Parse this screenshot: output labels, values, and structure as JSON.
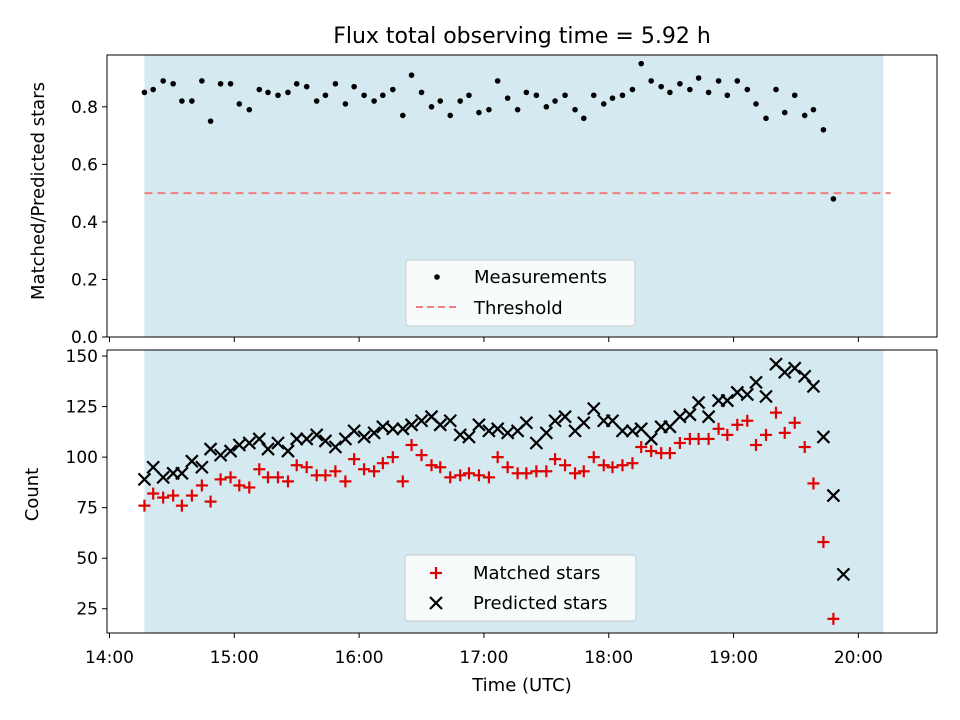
{
  "chart_data": {
    "title": "Flux total observing time = 5.92 h",
    "x_label": "Time (UTC)",
    "x_ticks": [
      "14:00",
      "15:00",
      "16:00",
      "17:00",
      "18:00",
      "19:00",
      "20:00"
    ],
    "x_tick_hours": [
      14,
      15,
      16,
      17,
      18,
      19,
      20
    ],
    "x_range_hours": [
      13.98,
      20.63
    ],
    "observing_window_hours": [
      14.28,
      20.2
    ],
    "window_color": "#d4eaf0",
    "panels": [
      {
        "type": "scatter",
        "y_label": "Matched/Predicted stars",
        "y_range": [
          0,
          0.98
        ],
        "y_ticks": [
          0.0,
          0.2,
          0.4,
          0.6,
          0.8
        ],
        "y_tick_labels": [
          "0.0",
          "0.2",
          "0.4",
          "0.6",
          "0.8"
        ],
        "legend": "bottom-center",
        "series": [
          {
            "name": "Measurements",
            "marker": "dot",
            "color": "#000000",
            "points": [
              [
                14.28,
                0.85
              ],
              [
                14.35,
                0.86
              ],
              [
                14.43,
                0.89
              ],
              [
                14.51,
                0.88
              ],
              [
                14.58,
                0.82
              ],
              [
                14.66,
                0.82
              ],
              [
                14.74,
                0.89
              ],
              [
                14.81,
                0.75
              ],
              [
                14.89,
                0.88
              ],
              [
                14.97,
                0.88
              ],
              [
                15.04,
                0.81
              ],
              [
                15.12,
                0.79
              ],
              [
                15.2,
                0.86
              ],
              [
                15.27,
                0.85
              ],
              [
                15.35,
                0.84
              ],
              [
                15.43,
                0.85
              ],
              [
                15.5,
                0.88
              ],
              [
                15.58,
                0.87
              ],
              [
                15.66,
                0.82
              ],
              [
                15.73,
                0.84
              ],
              [
                15.81,
                0.88
              ],
              [
                15.89,
                0.81
              ],
              [
                15.96,
                0.87
              ],
              [
                16.04,
                0.84
              ],
              [
                16.12,
                0.82
              ],
              [
                16.19,
                0.84
              ],
              [
                16.27,
                0.86
              ],
              [
                16.35,
                0.77
              ],
              [
                16.42,
                0.91
              ],
              [
                16.5,
                0.85
              ],
              [
                16.58,
                0.8
              ],
              [
                16.65,
                0.82
              ],
              [
                16.73,
                0.77
              ],
              [
                16.81,
                0.82
              ],
              [
                16.88,
                0.84
              ],
              [
                16.96,
                0.78
              ],
              [
                17.04,
                0.79
              ],
              [
                17.11,
                0.89
              ],
              [
                17.19,
                0.83
              ],
              [
                17.27,
                0.79
              ],
              [
                17.34,
                0.85
              ],
              [
                17.42,
                0.84
              ],
              [
                17.5,
                0.8
              ],
              [
                17.57,
                0.82
              ],
              [
                17.65,
                0.84
              ],
              [
                17.73,
                0.79
              ],
              [
                17.8,
                0.76
              ],
              [
                17.88,
                0.84
              ],
              [
                17.96,
                0.81
              ],
              [
                18.03,
                0.83
              ],
              [
                18.11,
                0.84
              ],
              [
                18.19,
                0.86
              ],
              [
                18.26,
                0.95
              ],
              [
                18.34,
                0.89
              ],
              [
                18.42,
                0.87
              ],
              [
                18.49,
                0.85
              ],
              [
                18.57,
                0.88
              ],
              [
                18.65,
                0.86
              ],
              [
                18.72,
                0.9
              ],
              [
                18.8,
                0.85
              ],
              [
                18.88,
                0.89
              ],
              [
                18.95,
                0.84
              ],
              [
                19.03,
                0.89
              ],
              [
                19.11,
                0.86
              ],
              [
                19.18,
                0.81
              ],
              [
                19.26,
                0.76
              ],
              [
                19.34,
                0.86
              ],
              [
                19.41,
                0.78
              ],
              [
                19.49,
                0.84
              ],
              [
                19.57,
                0.77
              ],
              [
                19.64,
                0.79
              ],
              [
                19.72,
                0.72
              ],
              [
                19.8,
                0.48
              ]
            ]
          },
          {
            "name": "Threshold",
            "marker": "dashed-line",
            "color": "#f08080",
            "y": 0.5,
            "x_span": [
              14.28,
              20.26
            ]
          }
        ]
      },
      {
        "type": "scatter",
        "y_label": "Count",
        "y_range": [
          13,
          153
        ],
        "y_ticks": [
          25,
          50,
          75,
          100,
          125,
          150
        ],
        "y_tick_labels": [
          "25",
          "50",
          "75",
          "100",
          "125",
          "150"
        ],
        "legend": "bottom-center",
        "series": [
          {
            "name": "Matched stars",
            "marker": "plus",
            "color": "#e00000",
            "points": [
              [
                14.28,
                76
              ],
              [
                14.35,
                82
              ],
              [
                14.43,
                80
              ],
              [
                14.51,
                81
              ],
              [
                14.58,
                76
              ],
              [
                14.66,
                81
              ],
              [
                14.74,
                86
              ],
              [
                14.81,
                78
              ],
              [
                14.89,
                89
              ],
              [
                14.97,
                90
              ],
              [
                15.04,
                86
              ],
              [
                15.12,
                85
              ],
              [
                15.2,
                94
              ],
              [
                15.27,
                90
              ],
              [
                15.35,
                90
              ],
              [
                15.43,
                88
              ],
              [
                15.5,
                96
              ],
              [
                15.58,
                95
              ],
              [
                15.66,
                91
              ],
              [
                15.73,
                91
              ],
              [
                15.81,
                93
              ],
              [
                15.89,
                88
              ],
              [
                15.96,
                99
              ],
              [
                16.04,
                94
              ],
              [
                16.12,
                93
              ],
              [
                16.19,
                97
              ],
              [
                16.27,
                100
              ],
              [
                16.35,
                88
              ],
              [
                16.42,
                106
              ],
              [
                16.5,
                101
              ],
              [
                16.58,
                96
              ],
              [
                16.65,
                95
              ],
              [
                16.73,
                90
              ],
              [
                16.81,
                91
              ],
              [
                16.88,
                92
              ],
              [
                16.96,
                91
              ],
              [
                17.04,
                90
              ],
              [
                17.11,
                100
              ],
              [
                17.19,
                95
              ],
              [
                17.27,
                92
              ],
              [
                17.34,
                92
              ],
              [
                17.42,
                93
              ],
              [
                17.5,
                93
              ],
              [
                17.57,
                99
              ],
              [
                17.65,
                96
              ],
              [
                17.73,
                92
              ],
              [
                17.8,
                93
              ],
              [
                17.88,
                100
              ],
              [
                17.96,
                96
              ],
              [
                18.03,
                95
              ],
              [
                18.11,
                96
              ],
              [
                18.19,
                97
              ],
              [
                18.26,
                105
              ],
              [
                18.34,
                103
              ],
              [
                18.42,
                102
              ],
              [
                18.49,
                102
              ],
              [
                18.57,
                107
              ],
              [
                18.65,
                109
              ],
              [
                18.72,
                109
              ],
              [
                18.8,
                109
              ],
              [
                18.88,
                114
              ],
              [
                18.95,
                111
              ],
              [
                19.03,
                116
              ],
              [
                19.11,
                118
              ],
              [
                19.18,
                106
              ],
              [
                19.26,
                111
              ],
              [
                19.34,
                122
              ],
              [
                19.41,
                112
              ],
              [
                19.49,
                117
              ],
              [
                19.57,
                105
              ],
              [
                19.64,
                87
              ],
              [
                19.72,
                58
              ],
              [
                19.8,
                20
              ]
            ]
          },
          {
            "name": "Predicted stars",
            "marker": "cross",
            "color": "#000000",
            "points": [
              [
                14.28,
                89
              ],
              [
                14.35,
                95
              ],
              [
                14.43,
                90
              ],
              [
                14.51,
                92
              ],
              [
                14.58,
                92
              ],
              [
                14.66,
                98
              ],
              [
                14.74,
                95
              ],
              [
                14.81,
                104
              ],
              [
                14.89,
                101
              ],
              [
                14.97,
                103
              ],
              [
                15.04,
                106
              ],
              [
                15.12,
                107
              ],
              [
                15.2,
                109
              ],
              [
                15.27,
                104
              ],
              [
                15.35,
                107
              ],
              [
                15.43,
                103
              ],
              [
                15.5,
                109
              ],
              [
                15.58,
                109
              ],
              [
                15.66,
                111
              ],
              [
                15.73,
                108
              ],
              [
                15.81,
                105
              ],
              [
                15.89,
                109
              ],
              [
                15.96,
                113
              ],
              [
                16.04,
                110
              ],
              [
                16.12,
                112
              ],
              [
                16.19,
                115
              ],
              [
                16.27,
                114
              ],
              [
                16.35,
                114
              ],
              [
                16.42,
                116
              ],
              [
                16.5,
                118
              ],
              [
                16.58,
                120
              ],
              [
                16.65,
                116
              ],
              [
                16.73,
                118
              ],
              [
                16.81,
                111
              ],
              [
                16.88,
                110
              ],
              [
                16.96,
                116
              ],
              [
                17.04,
                113
              ],
              [
                17.11,
                114
              ],
              [
                17.19,
                112
              ],
              [
                17.27,
                113
              ],
              [
                17.34,
                117
              ],
              [
                17.42,
                107
              ],
              [
                17.5,
                112
              ],
              [
                17.57,
                118
              ],
              [
                17.65,
                120
              ],
              [
                17.73,
                113
              ],
              [
                17.8,
                117
              ],
              [
                17.88,
                124
              ],
              [
                17.96,
                118
              ],
              [
                18.03,
                118
              ],
              [
                18.11,
                113
              ],
              [
                18.19,
                113
              ],
              [
                18.26,
                114
              ],
              [
                18.34,
                109
              ],
              [
                18.42,
                115
              ],
              [
                18.49,
                115
              ],
              [
                18.57,
                120
              ],
              [
                18.65,
                121
              ],
              [
                18.72,
                127
              ],
              [
                18.8,
                120
              ],
              [
                18.88,
                128
              ],
              [
                18.95,
                128
              ],
              [
                19.03,
                132
              ],
              [
                19.11,
                131
              ],
              [
                19.18,
                137
              ],
              [
                19.26,
                130
              ],
              [
                19.34,
                146
              ],
              [
                19.41,
                142
              ],
              [
                19.49,
                144
              ],
              [
                19.57,
                140
              ],
              [
                19.64,
                135
              ],
              [
                19.72,
                110
              ],
              [
                19.8,
                81
              ],
              [
                19.88,
                42
              ]
            ]
          }
        ]
      }
    ]
  }
}
